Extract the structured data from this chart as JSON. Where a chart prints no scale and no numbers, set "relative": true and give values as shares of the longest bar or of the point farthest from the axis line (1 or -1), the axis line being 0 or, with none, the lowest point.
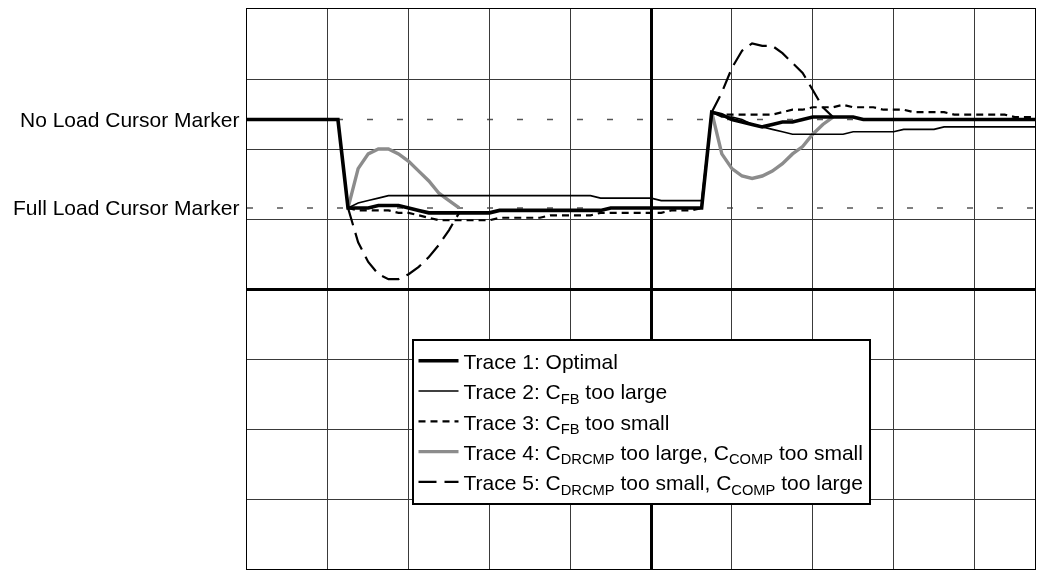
{
  "chart_data": {
    "type": "line",
    "relative": true,
    "grid": true,
    "legend": "bottom",
    "categories": [
      null,
      null,
      null,
      null,
      null,
      null,
      null,
      null,
      null,
      null,
      null,
      null,
      null,
      null,
      null,
      null,
      null,
      null,
      null,
      null,
      null,
      null,
      null,
      null,
      null,
      null,
      null,
      null,
      null,
      null,
      null,
      null,
      null,
      null,
      null,
      null,
      null,
      null,
      null,
      null,
      null,
      null,
      null,
      null,
      null,
      null,
      null,
      null,
      null,
      null,
      null,
      null,
      null,
      null,
      null,
      null,
      null,
      null,
      null,
      null,
      null,
      null,
      null,
      null,
      null,
      null,
      null,
      null,
      null,
      null,
      null,
      null,
      null,
      null,
      null,
      null,
      null,
      null,
      null
    ],
    "series": [
      {
        "name": "Trace 1: Optimal",
        "color": "#000000",
        "line_style": "solid",
        "values": [
          0.69,
          0.69,
          0.69,
          0.69,
          0.69,
          0.69,
          0.69,
          0.69,
          0.69,
          0.69,
          0.33,
          0.33,
          0.33,
          0.34,
          0.34,
          0.34,
          0.33,
          0.32,
          0.31,
          0.31,
          0.31,
          0.31,
          0.31,
          0.31,
          0.31,
          0.32,
          0.32,
          0.32,
          0.32,
          0.32,
          0.32,
          0.32,
          0.32,
          0.32,
          0.32,
          0.32,
          0.33,
          0.33,
          0.33,
          0.33,
          0.33,
          0.33,
          0.33,
          0.33,
          0.33,
          0.33,
          0.72,
          0.71,
          0.69,
          0.68,
          0.67,
          0.66,
          0.67,
          0.68,
          0.68,
          0.69,
          0.7,
          0.7,
          0.7,
          0.7,
          0.7,
          0.69,
          0.69,
          0.69,
          0.69,
          0.69,
          0.69,
          0.69,
          0.69,
          0.69,
          0.69,
          0.69,
          0.69,
          0.69,
          0.69,
          0.69,
          0.69,
          0.69,
          0.69
        ]
      },
      {
        "name": "Trace 2: C$_{FB}$ too large",
        "color": "#000000",
        "line_style": "solid",
        "values": [
          null,
          null,
          null,
          null,
          null,
          null,
          null,
          null,
          null,
          null,
          0.33,
          0.35,
          0.36,
          0.37,
          0.38,
          0.38,
          0.38,
          0.38,
          0.38,
          0.38,
          0.38,
          0.38,
          0.38,
          0.38,
          0.38,
          0.38,
          0.38,
          0.38,
          0.38,
          0.38,
          0.38,
          0.38,
          0.38,
          0.38,
          0.38,
          0.37,
          0.37,
          0.37,
          0.37,
          0.37,
          0.37,
          0.36,
          0.36,
          0.36,
          0.36,
          0.36,
          0.72,
          0.7,
          0.7,
          0.69,
          0.67,
          0.66,
          0.65,
          0.64,
          0.63,
          0.63,
          0.63,
          0.63,
          0.63,
          0.63,
          0.64,
          0.64,
          0.64,
          0.64,
          0.64,
          0.65,
          0.65,
          0.65,
          0.65,
          0.66,
          0.66,
          0.66,
          0.66,
          0.66,
          0.66,
          0.66,
          0.66,
          0.66,
          0.66
        ]
      },
      {
        "name": "Trace 3: C$_{FB}$ too small",
        "color": "#000000",
        "line_style": "dashed",
        "values": [
          null,
          null,
          null,
          null,
          null,
          null,
          null,
          null,
          null,
          null,
          0.33,
          0.32,
          0.32,
          0.32,
          0.32,
          0.31,
          0.31,
          0.3,
          0.29,
          0.28,
          0.28,
          0.28,
          0.28,
          0.28,
          0.28,
          0.29,
          0.29,
          0.29,
          0.29,
          0.29,
          0.3,
          0.3,
          0.3,
          0.3,
          0.3,
          0.31,
          0.31,
          0.31,
          0.31,
          0.31,
          0.31,
          0.31,
          0.32,
          0.32,
          0.32,
          0.33,
          0.72,
          0.71,
          0.71,
          0.71,
          0.71,
          0.71,
          0.71,
          0.72,
          0.73,
          0.73,
          0.74,
          0.74,
          0.74,
          0.75,
          0.74,
          0.74,
          0.74,
          0.73,
          0.73,
          0.73,
          0.72,
          0.72,
          0.72,
          0.72,
          0.71,
          0.71,
          0.71,
          0.71,
          0.71,
          0.71,
          0.7,
          0.7,
          0.7
        ]
      },
      {
        "name": "Trace 4: C$_{DRCMP}$ too large, C$_{COMP}$ too small",
        "color": "#8c8c8c",
        "line_style": "solid",
        "values": [
          null,
          null,
          null,
          null,
          null,
          null,
          null,
          null,
          null,
          null,
          0.33,
          0.49,
          0.55,
          0.57,
          0.57,
          0.55,
          0.52,
          0.48,
          0.44,
          0.39,
          0.36,
          0.33,
          null,
          null,
          null,
          null,
          null,
          null,
          null,
          null,
          null,
          null,
          null,
          null,
          null,
          null,
          null,
          null,
          null,
          null,
          null,
          null,
          null,
          null,
          null,
          null,
          0.72,
          0.55,
          0.49,
          0.46,
          0.45,
          0.46,
          0.48,
          0.51,
          0.55,
          0.58,
          0.63,
          0.67,
          0.7,
          null,
          null,
          null,
          null,
          null,
          null,
          null,
          null,
          null,
          null,
          null,
          null,
          null,
          null,
          null,
          null,
          null,
          null,
          null,
          null
        ]
      },
      {
        "name": "Trace 5: C$_{DRCMP}$ too small, C$_{COMP}$ too large",
        "color": "#000000",
        "line_style": "dashed",
        "values": [
          null,
          null,
          null,
          null,
          null,
          null,
          null,
          null,
          null,
          null,
          0.33,
          0.19,
          0.11,
          0.06,
          0.04,
          0.04,
          0.06,
          0.09,
          0.13,
          0.18,
          0.24,
          0.31,
          null,
          null,
          null,
          null,
          null,
          null,
          null,
          null,
          null,
          null,
          null,
          null,
          null,
          null,
          null,
          null,
          null,
          null,
          null,
          null,
          null,
          null,
          null,
          null,
          0.72,
          0.8,
          0.9,
          0.97,
          1.0,
          0.99,
          0.99,
          0.96,
          0.92,
          0.88,
          0.81,
          0.74,
          0.7,
          null,
          null,
          null,
          null,
          null,
          null,
          null,
          null,
          null,
          null,
          null,
          null,
          null,
          null,
          null,
          null,
          null,
          null,
          null,
          null
        ]
      }
    ],
    "ref_lines": [
      {
        "axis": "y",
        "value": 0.69,
        "label": "No Load Cursor Marker",
        "color": "#555555",
        "line_style": "dashed"
      },
      {
        "axis": "y",
        "value": 0.33,
        "label": "Full Load Cursor Marker",
        "color": "#555555",
        "line_style": "dashed"
      }
    ]
  }
}
